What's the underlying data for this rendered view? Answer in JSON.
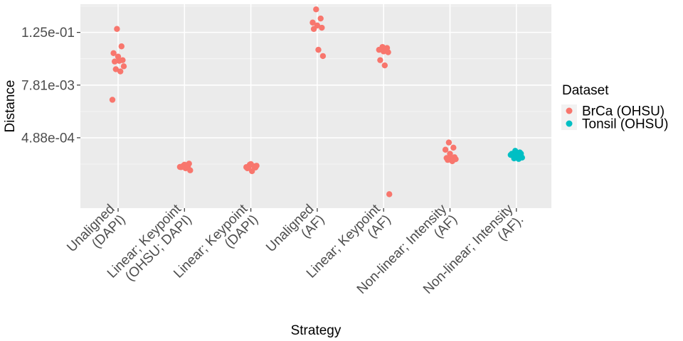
{
  "chart_data": {
    "type": "scatter",
    "title": "",
    "xlabel": "Strategy",
    "ylabel": "Distance",
    "y_scale": "log",
    "ylim": [
      1.2e-05,
      0.55
    ],
    "y_ticks": [
      {
        "value": 0.000488,
        "label": "4.88e-04"
      },
      {
        "value": 0.00781,
        "label": "7.81e-03"
      },
      {
        "value": 0.125,
        "label": "1.25e-01"
      }
    ],
    "grid": true,
    "legend": {
      "title": "Dataset",
      "placement": "right"
    },
    "categories": [
      "Unaligned (DAPI)",
      "Linear; Keypoint (OHSU; DAPI)",
      "Linear; Keypoint (DAPI)",
      "Unaligned (AF)",
      "Linear; Keypoint (AF)",
      "Non-linear; Intensity (AF)",
      "Non-linear; Intensity (AF)."
    ],
    "category_lines": [
      [
        "Unaligned",
        "(DAPI)"
      ],
      [
        "Linear; Keypoint",
        "(OHSU; DAPI)"
      ],
      [
        "Linear; Keypoint",
        "(DAPI)"
      ],
      [
        "Unaligned",
        "(AF)"
      ],
      [
        "Linear; Keypoint",
        "(AF)"
      ],
      [
        "Non-linear; Intensity",
        "(AF)"
      ],
      [
        "Non-linear; Intensity",
        "(AF)."
      ]
    ],
    "series": [
      {
        "name": "BrCa (OHSU)",
        "color": "#F8766D",
        "points": [
          {
            "x": "Unaligned (DAPI)",
            "y": 0.15
          },
          {
            "x": "Unaligned (DAPI)",
            "y": 0.06
          },
          {
            "x": "Unaligned (DAPI)",
            "y": 0.042
          },
          {
            "x": "Unaligned (DAPI)",
            "y": 0.035
          },
          {
            "x": "Unaligned (DAPI)",
            "y": 0.029
          },
          {
            "x": "Unaligned (DAPI)",
            "y": 0.027
          },
          {
            "x": "Unaligned (DAPI)",
            "y": 0.028
          },
          {
            "x": "Unaligned (DAPI)",
            "y": 0.021
          },
          {
            "x": "Unaligned (DAPI)",
            "y": 0.018
          },
          {
            "x": "Unaligned (DAPI)",
            "y": 0.016
          },
          {
            "x": "Unaligned (DAPI)",
            "y": 0.0036
          },
          {
            "x": "Linear; Keypoint (OHSU; DAPI)",
            "y": 0.000112
          },
          {
            "x": "Linear; Keypoint (OHSU; DAPI)",
            "y": 0.000108
          },
          {
            "x": "Linear; Keypoint (OHSU; DAPI)",
            "y": 0.000105
          },
          {
            "x": "Linear; Keypoint (OHSU; DAPI)",
            "y": 0.000118
          },
          {
            "x": "Linear; Keypoint (OHSU; DAPI)",
            "y": 0.000125
          },
          {
            "x": "Linear; Keypoint (OHSU; DAPI)",
            "y": 0.000104
          },
          {
            "x": "Linear; Keypoint (OHSU; DAPI)",
            "y": 9.8e-05
          },
          {
            "x": "Linear; Keypoint (OHSU; DAPI)",
            "y": 8.8e-05
          },
          {
            "x": "Linear; Keypoint (OHSU; DAPI)",
            "y": 0.000106
          },
          {
            "x": "Linear; Keypoint (OHSU; DAPI)",
            "y": 0.000104
          },
          {
            "x": "Linear; Keypoint (DAPI)",
            "y": 0.000118
          },
          {
            "x": "Linear; Keypoint (DAPI)",
            "y": 0.000108
          },
          {
            "x": "Linear; Keypoint (DAPI)",
            "y": 0.000104
          },
          {
            "x": "Linear; Keypoint (DAPI)",
            "y": 0.000122
          },
          {
            "x": "Linear; Keypoint (DAPI)",
            "y": 0.000102
          },
          {
            "x": "Linear; Keypoint (DAPI)",
            "y": 9.8e-05
          },
          {
            "x": "Linear; Keypoint (DAPI)",
            "y": 8.4e-05
          },
          {
            "x": "Linear; Keypoint (DAPI)",
            "y": 0.000112
          },
          {
            "x": "Linear; Keypoint (DAPI)",
            "y": 0.000106
          },
          {
            "x": "Unaligned (AF)",
            "y": 0.42
          },
          {
            "x": "Unaligned (AF)",
            "y": 0.26
          },
          {
            "x": "Unaligned (AF)",
            "y": 0.21
          },
          {
            "x": "Unaligned (AF)",
            "y": 0.18
          },
          {
            "x": "Unaligned (AF)",
            "y": 0.16
          },
          {
            "x": "Unaligned (AF)",
            "y": 0.15
          },
          {
            "x": "Unaligned (AF)",
            "y": 0.05
          },
          {
            "x": "Unaligned (AF)",
            "y": 0.036
          },
          {
            "x": "Linear; Keypoint (AF)",
            "y": 0.058
          },
          {
            "x": "Linear; Keypoint (AF)",
            "y": 0.055
          },
          {
            "x": "Linear; Keypoint (AF)",
            "y": 0.05
          },
          {
            "x": "Linear; Keypoint (AF)",
            "y": 0.046
          },
          {
            "x": "Linear; Keypoint (AF)",
            "y": 0.044
          },
          {
            "x": "Linear; Keypoint (AF)",
            "y": 0.029
          },
          {
            "x": "Linear; Keypoint (AF)",
            "y": 0.022
          },
          {
            "x": "Linear; Keypoint (AF)",
            "y": 2.5e-05
          },
          {
            "x": "Non-linear; Intensity (AF)",
            "y": 0.00038
          },
          {
            "x": "Non-linear; Intensity (AF)",
            "y": 0.00029
          },
          {
            "x": "Non-linear; Intensity (AF)",
            "y": 0.00026
          },
          {
            "x": "Non-linear; Intensity (AF)",
            "y": 0.00021
          },
          {
            "x": "Non-linear; Intensity (AF)",
            "y": 0.000175
          },
          {
            "x": "Non-linear; Intensity (AF)",
            "y": 0.000168
          },
          {
            "x": "Non-linear; Intensity (AF)",
            "y": 0.000162
          },
          {
            "x": "Non-linear; Intensity (AF)",
            "y": 0.000158
          },
          {
            "x": "Non-linear; Intensity (AF)",
            "y": 0.000152
          },
          {
            "x": "Non-linear; Intensity (AF)",
            "y": 0.000142
          }
        ]
      },
      {
        "name": "Tonsil (OHSU)",
        "color": "#00BFC4",
        "points": [
          {
            "x": "Non-linear; Intensity (AF).",
            "y": 0.000245
          },
          {
            "x": "Non-linear; Intensity (AF).",
            "y": 0.000225
          },
          {
            "x": "Non-linear; Intensity (AF).",
            "y": 0.00021
          },
          {
            "x": "Non-linear; Intensity (AF).",
            "y": 0.0002
          },
          {
            "x": "Non-linear; Intensity (AF).",
            "y": 0.000212
          },
          {
            "x": "Non-linear; Intensity (AF).",
            "y": 0.000192
          },
          {
            "x": "Non-linear; Intensity (AF).",
            "y": 0.00018
          },
          {
            "x": "Non-linear; Intensity (AF).",
            "y": 0.000172
          },
          {
            "x": "Non-linear; Intensity (AF).",
            "y": 0.000165
          },
          {
            "x": "Non-linear; Intensity (AF).",
            "y": 0.00016
          },
          {
            "x": "Non-linear; Intensity (AF).",
            "y": 0.000198
          },
          {
            "x": "Non-linear; Intensity (AF).",
            "y": 0.000185
          }
        ]
      }
    ]
  }
}
